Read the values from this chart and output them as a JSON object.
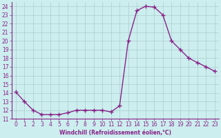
{
  "x": [
    0,
    1,
    2,
    3,
    4,
    5,
    6,
    7,
    8,
    9,
    10,
    11,
    12,
    13,
    14,
    15,
    16,
    17,
    18,
    19,
    20,
    21,
    22,
    23
  ],
  "y": [
    14.1,
    13.0,
    12.0,
    11.5,
    11.5,
    11.5,
    11.7,
    12.0,
    12.0,
    12.0,
    12.0,
    11.8,
    12.5,
    20.0,
    23.5,
    24.0,
    23.9,
    23.0,
    20.0,
    19.0,
    18.0,
    17.5,
    17.0,
    16.5
  ],
  "line_color": "#882288",
  "marker": "+",
  "marker_size": 4,
  "marker_lw": 1.0,
  "line_width": 1.0,
  "bg_color": "#cceeee",
  "grid_color": "#aacccc",
  "xlabel": "Windchill (Refroidissement éolien,°C)",
  "xlabel_color": "#882288",
  "tick_color": "#882288",
  "spine_color": "#882288",
  "ylim": [
    11,
    24.5
  ],
  "xlim": [
    -0.5,
    23.5
  ],
  "yticks": [
    11,
    12,
    13,
    14,
    15,
    16,
    17,
    18,
    19,
    20,
    21,
    22,
    23,
    24
  ],
  "xticks": [
    0,
    1,
    2,
    3,
    4,
    5,
    6,
    7,
    8,
    9,
    10,
    11,
    12,
    13,
    14,
    15,
    16,
    17,
    18,
    19,
    20,
    21,
    22,
    23
  ],
  "tick_fontsize": 5.5,
  "xlabel_fontsize": 5.5
}
